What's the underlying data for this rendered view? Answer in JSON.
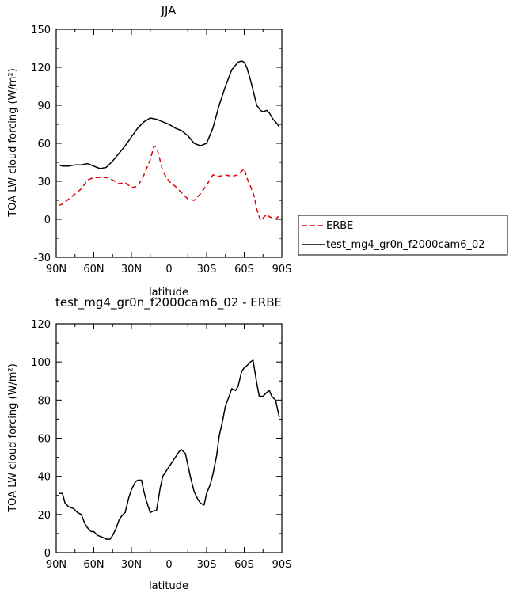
{
  "chart_data": [
    {
      "type": "line",
      "title": "JJA",
      "xlabel": "latitude",
      "ylabel": "TOA LW cloud forcing (W/m²)",
      "xticks": [
        "90N",
        "60N",
        "30N",
        "0",
        "30S",
        "60S",
        "90S"
      ],
      "xlim": [
        90,
        -90
      ],
      "ylim": [
        -30,
        150
      ],
      "yticks": [
        -30,
        0,
        30,
        60,
        90,
        120,
        150
      ],
      "legend_position": "right",
      "series": [
        {
          "name": "ERBE",
          "color": "#e00000",
          "dash": "dashed",
          "x": [
            88,
            85,
            80,
            75,
            70,
            65,
            60,
            55,
            50,
            45,
            40,
            35,
            30,
            25,
            20,
            15,
            12,
            10,
            8,
            5,
            2,
            0,
            -5,
            -10,
            -15,
            -20,
            -25,
            -30,
            -35,
            -40,
            -45,
            -50,
            -55,
            -60,
            -62,
            -65,
            -68,
            -70,
            -73,
            -75,
            -78,
            -80,
            -83,
            -85,
            -88
          ],
          "y": [
            11,
            12,
            16,
            20,
            24,
            31,
            33,
            33,
            33,
            31,
            28,
            29,
            25,
            26,
            35,
            47,
            58,
            57,
            50,
            38,
            33,
            30,
            26,
            21,
            16,
            15,
            20,
            27,
            35,
            34,
            35,
            34,
            35,
            40,
            33,
            26,
            18,
            8,
            -1,
            1,
            4,
            2,
            1,
            0,
            3
          ]
        },
        {
          "name": "test_mg4_gr0n_f2000cam6_02",
          "color": "#000000",
          "dash": "solid",
          "x": [
            88,
            85,
            80,
            75,
            70,
            65,
            60,
            55,
            50,
            45,
            40,
            35,
            30,
            25,
            20,
            15,
            10,
            5,
            0,
            -5,
            -10,
            -15,
            -20,
            -25,
            -30,
            -35,
            -40,
            -45,
            -50,
            -55,
            -58,
            -60,
            -62,
            -65,
            -68,
            -70,
            -73,
            -75,
            -78,
            -80,
            -83,
            -85,
            -88
          ],
          "y": [
            43,
            42,
            42,
            43,
            43,
            44,
            42,
            40,
            41,
            46,
            52,
            58,
            65,
            72,
            77,
            80,
            79,
            77,
            75,
            72,
            70,
            66,
            60,
            58,
            60,
            72,
            90,
            105,
            118,
            124,
            125,
            124,
            120,
            110,
            98,
            90,
            86,
            85,
            86,
            84,
            79,
            77,
            73
          ]
        }
      ]
    },
    {
      "type": "line",
      "title": "test_mg4_gr0n_f2000cam6_02 - ERBE",
      "xlabel": "latitude",
      "ylabel": "TOA LW cloud forcing (W/m²)",
      "xticks": [
        "90N",
        "60N",
        "30N",
        "0",
        "30S",
        "60S",
        "90S"
      ],
      "xlim": [
        90,
        -90
      ],
      "ylim": [
        0,
        120
      ],
      "yticks": [
        0,
        20,
        40,
        60,
        80,
        100,
        120
      ],
      "series": [
        {
          "color": "#000000",
          "dash": "solid",
          "x": [
            88,
            85,
            83,
            80,
            76,
            73,
            70,
            67,
            65,
            62,
            60,
            57,
            53,
            50,
            47,
            45,
            42,
            40,
            38,
            35,
            32,
            30,
            27,
            25,
            22,
            20,
            18,
            15,
            12,
            10,
            7,
            5,
            2,
            0,
            -3,
            -5,
            -8,
            -10,
            -13,
            -15,
            -17,
            -20,
            -23,
            -25,
            -28,
            -30,
            -33,
            -35,
            -38,
            -40,
            -43,
            -45,
            -48,
            -50,
            -53,
            -55,
            -58,
            -60,
            -62,
            -65,
            -67,
            -70,
            -72,
            -75,
            -78,
            -80,
            -82,
            -85,
            -88
          ],
          "y": [
            31,
            31,
            26,
            24,
            23,
            21,
            20,
            15,
            13,
            11,
            11,
            9,
            8,
            7,
            7,
            9,
            13,
            17,
            19,
            21,
            29,
            33,
            37,
            38,
            38,
            32,
            27,
            21,
            22,
            22,
            34,
            40,
            43,
            45,
            48,
            50,
            53,
            54,
            52,
            46,
            40,
            32,
            28,
            26,
            25,
            31,
            36,
            41,
            51,
            61,
            70,
            77,
            82,
            86,
            85,
            87,
            95,
            97,
            98,
            100,
            101,
            89,
            82,
            82,
            84,
            85,
            82,
            80,
            71
          ]
        }
      ]
    }
  ]
}
